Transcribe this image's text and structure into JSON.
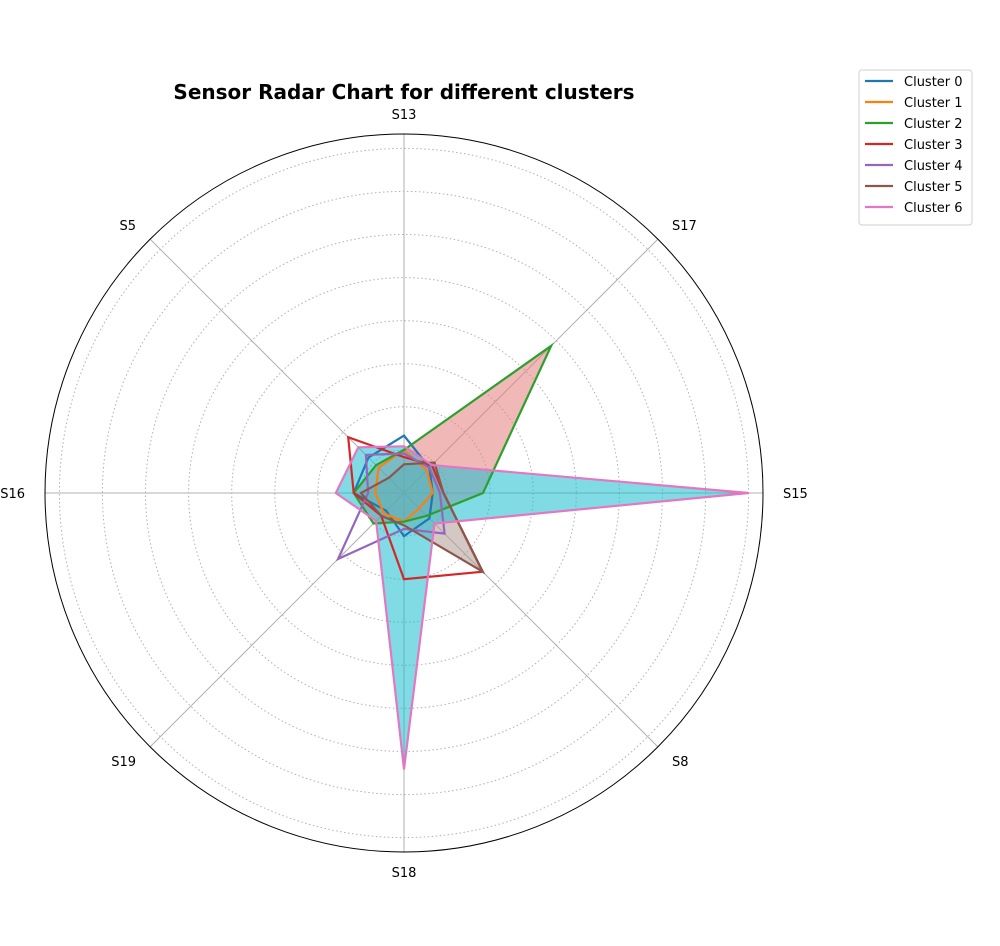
{
  "chart_data": {
    "type": "radar",
    "title": "Sensor Radar Chart for different clusters",
    "axes": [
      "S13",
      "S17",
      "S15",
      "S8",
      "S18",
      "S19",
      "S16",
      "S5"
    ],
    "rlim": [
      0,
      1
    ],
    "grid": true,
    "legend_position": "top-right",
    "series": [
      {
        "name": "Cluster 0",
        "color": "#1f77b4",
        "fill": false,
        "values": [
          0.16,
          0.1,
          0.08,
          0.1,
          0.12,
          0.07,
          0.14,
          0.14
        ]
      },
      {
        "name": "Cluster 1",
        "color": "#ff7f0e",
        "fill": false,
        "values": [
          0.12,
          0.09,
          0.08,
          0.06,
          0.08,
          0.08,
          0.08,
          0.1
        ]
      },
      {
        "name": "Cluster 2",
        "color": "#2ca02c",
        "fill": true,
        "fill_color": "#e67e7e",
        "values": [
          0.12,
          0.58,
          0.22,
          0.09,
          0.08,
          0.12,
          0.14,
          0.11
        ]
      },
      {
        "name": "Cluster 3",
        "color": "#d62728",
        "fill": false,
        "values": [
          0.1,
          0.11,
          0.11,
          0.31,
          0.24,
          0.09,
          0.14,
          0.22
        ]
      },
      {
        "name": "Cluster 4",
        "color": "#9467bd",
        "fill": false,
        "values": [
          0.11,
          0.1,
          0.1,
          0.16,
          0.1,
          0.26,
          0.1,
          0.15
        ]
      },
      {
        "name": "Cluster 5",
        "color": "#8c564b",
        "fill": true,
        "fill_color": "#b09b96",
        "values": [
          0.08,
          0.12,
          0.11,
          0.31,
          0.09,
          0.09,
          0.12,
          0.06
        ]
      },
      {
        "name": "Cluster 6",
        "color": "#e377c2",
        "fill": true,
        "fill_color": "#17becf",
        "values": [
          0.13,
          0.11,
          0.96,
          0.12,
          0.77,
          0.11,
          0.19,
          0.18
        ]
      }
    ]
  }
}
